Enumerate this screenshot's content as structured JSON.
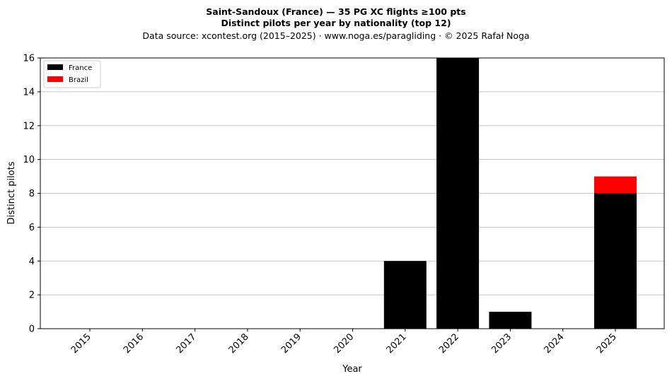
{
  "chart_data": {
    "type": "bar",
    "stacked": true,
    "title_line1": "Saint-Sandoux (France)  —  35 PG XC flights ≥100 pts",
    "title_line2": "Distinct pilots per year by nationality (top 12)",
    "subtitle": "Data source: xcontest.org (2015–2025)  ·  www.noga.es/paragliding  ·  © 2025 Rafał Noga",
    "xlabel": "Year",
    "ylabel": "Distinct pilots",
    "categories": [
      "2015",
      "2016",
      "2017",
      "2018",
      "2019",
      "2020",
      "2021",
      "2022",
      "2023",
      "2024",
      "2025"
    ],
    "series": [
      {
        "name": "France",
        "color": "#000000",
        "values": [
          0,
          0,
          0,
          0,
          0,
          0,
          4,
          16,
          1,
          0,
          8
        ]
      },
      {
        "name": "Brazil",
        "color": "#ff0000",
        "values": [
          0,
          0,
          0,
          0,
          0,
          0,
          0,
          0,
          0,
          0,
          1
        ]
      }
    ],
    "ylim": [
      0,
      16
    ],
    "yticks": [
      0,
      2,
      4,
      6,
      8,
      10,
      12,
      14,
      16
    ],
    "grid": "horizontal",
    "legend_position": "top-left"
  }
}
